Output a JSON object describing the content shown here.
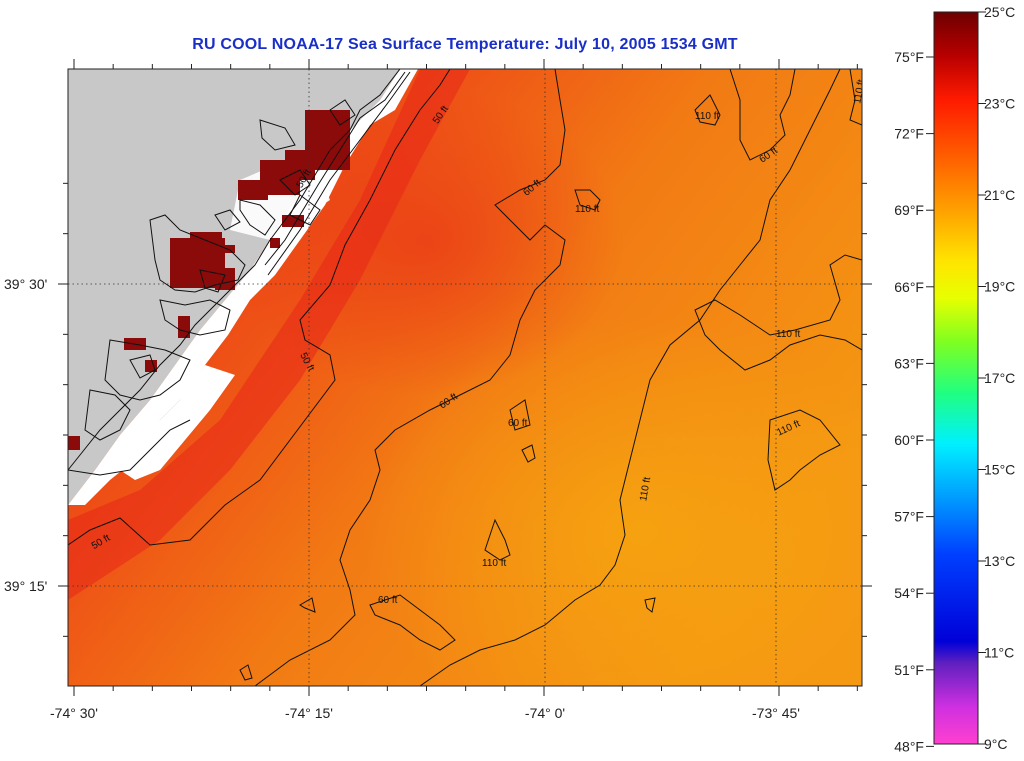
{
  "title": "RU COOL  NOAA-17  Sea Surface Temperature:  July 10, 2005 1534 GMT",
  "lon_ticks": [
    "-74° 30'",
    "-74° 15'",
    "-74° 0'",
    "-73° 45'"
  ],
  "lat_ticks": [
    "39° 30'",
    "39° 15'"
  ],
  "colorbar": {
    "celsius": [
      "25°C",
      "23°C",
      "21°C",
      "19°C",
      "17°C",
      "15°C",
      "13°C",
      "11°C",
      "9°C"
    ],
    "fahrenheit": [
      "75°F",
      "72°F",
      "69°F",
      "66°F",
      "63°F",
      "60°F",
      "57°F",
      "54°F",
      "51°F",
      "48°F"
    ]
  },
  "contour_labels": [
    "50 ft",
    "60 ft",
    "110 ft"
  ],
  "colors": {
    "title": "#1a2fc8",
    "land": "#c8c8c8",
    "sst_warm": "#e6321a",
    "sst_mid": "#f06a14",
    "sst_cool": "#f49a10",
    "cloud_hot": "#8b0a0a"
  }
}
